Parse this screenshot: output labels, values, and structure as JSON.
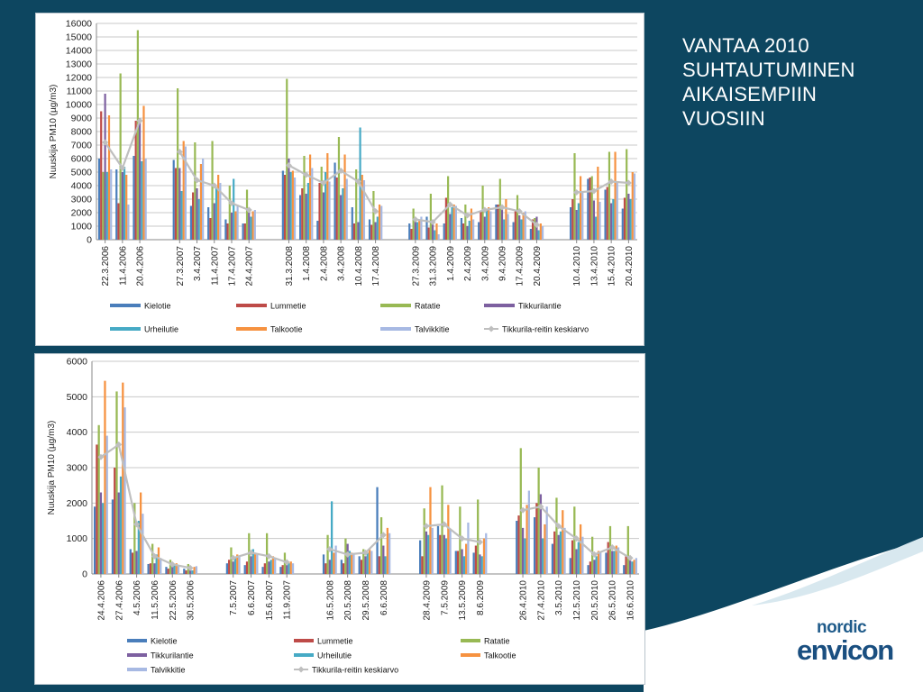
{
  "slide": {
    "title_lines": [
      "VANTAA 2010",
      "SUHTAUTUMINEN",
      "AIKAISEMPIIN",
      "VUOSIIN"
    ],
    "logo_top": "nordic",
    "logo_bottom": "envicon"
  },
  "colors": {
    "background": "#0d4660",
    "Kielotie": "#4a7ebb",
    "Lummetie": "#be4b48",
    "Ratatie": "#98b954",
    "Tikkurilantie": "#7d60a0",
    "Urheilutie": "#46aac5",
    "Talkootie": "#f69240",
    "Talvikkitie": "#a7b9e3",
    "Tikkurila-reitin keskiarvo": "#bfbfbf"
  },
  "chart_data": [
    {
      "type": "bar",
      "ylabel": "Nuuskija PM10 (µg/m3)",
      "ylim": [
        0,
        16000
      ],
      "yticks": [
        0,
        1000,
        2000,
        3000,
        4000,
        5000,
        6000,
        7000,
        8000,
        9000,
        10000,
        11000,
        12000,
        13000,
        14000,
        15000,
        16000
      ],
      "legend_position": "bottom",
      "series_names": [
        "Kielotie",
        "Lummetie",
        "Ratatie",
        "Tikkurilantie",
        "Urheilutie",
        "Talkootie",
        "Talvikkitie"
      ],
      "line_series_name": "Tikkurila-reitin  keskiarvo",
      "legend_order": [
        "Kielotie",
        "Lummetie",
        "Ratatie",
        "Tikkurilantie",
        "Urheilutie",
        "Talkootie",
        "Talvikkitie",
        "Tikkurila-reitin  keskiarvo"
      ],
      "groups": [
        {
          "categories": [
            {
              "date": "22.3.2006",
              "values": [
                6000,
                9500,
                5000,
                10800,
                5000,
                9200,
                5200
              ],
              "avg": 7200
            },
            {
              "date": "11.4.2006",
              "values": [
                5200,
                2700,
                12300,
                5000,
                5400,
                4800,
                2600
              ],
              "avg": 5300
            },
            {
              "date": "20.4.2006",
              "values": [
                6200,
                8800,
                15500,
                9000,
                5800,
                9900,
                6000
              ],
              "avg": 8800
            }
          ]
        },
        {
          "categories": [
            {
              "date": "27.3.2007",
              "values": [
                5900,
                5300,
                11200,
                5300,
                3600,
                7300,
                6900
              ],
              "avg": 6500
            },
            {
              "date": "3.4.2007",
              "values": [
                2500,
                3500,
                7200,
                3800,
                3000,
                5600,
                6000
              ],
              "avg": 4400
            },
            {
              "date": "11.4.2007",
              "values": [
                2400,
                1600,
                7300,
                2700,
                3900,
                4800,
                4200
              ],
              "avg": 4000
            },
            {
              "date": "17.4.2007",
              "values": [
                1500,
                1200,
                4000,
                2000,
                4500,
                2100,
                2500
              ],
              "avg": 2700
            },
            {
              "date": "24.4.2007",
              "values": [
                1200,
                1200,
                3700,
                2000,
                1700,
                2100,
                2200
              ],
              "avg": 2200
            }
          ]
        },
        {
          "categories": [
            {
              "date": "31.3.2008",
              "values": [
                5100,
                4800,
                11900,
                6000,
                5000,
                5100,
                4600
              ],
              "avg": 5500
            },
            {
              "date": "1.4.2008",
              "values": [
                3300,
                3800,
                6200,
                3400,
                4200,
                6300,
                5300
              ],
              "avg": 4800
            },
            {
              "date": "2.4.2008",
              "values": [
                1400,
                4200,
                5400,
                3500,
                5000,
                6400,
                4300
              ],
              "avg": 4200
            },
            {
              "date": "3.4.2008",
              "values": [
                5700,
                4600,
                7600,
                3300,
                3800,
                6300,
                4500
              ],
              "avg": 5100
            },
            {
              "date": "10.4.2008",
              "values": [
                2400,
                1200,
                5200,
                1300,
                8300,
                4800,
                4400
              ],
              "avg": 4300
            },
            {
              "date": "17.4.2008",
              "values": [
                1500,
                1100,
                3600,
                1300,
                1700,
                2600,
                2500
              ],
              "avg": 2100
            }
          ]
        },
        {
          "categories": [
            {
              "date": "27.3.2009",
              "values": [
                1200,
                800,
                2300,
                1400,
                1300,
                1500,
                1700
              ],
              "avg": 1500
            },
            {
              "date": "31.3.2009",
              "values": [
                1700,
                900,
                3400,
                1300,
                700,
                1200,
                400
              ],
              "avg": 1300
            },
            {
              "date": "1.4.2009",
              "values": [
                1200,
                3100,
                4700,
                1900,
                2400,
                2600,
                2500
              ],
              "avg": 2600
            },
            {
              "date": "2.4.2009",
              "values": [
                1600,
                1200,
                2600,
                1000,
                1400,
                2300,
                1500
              ],
              "avg": 1800
            },
            {
              "date": "3.4.2009",
              "values": [
                1300,
                2100,
                4000,
                1700,
                2200,
                2400,
                2100
              ],
              "avg": 2200
            },
            {
              "date": "9.4.2009",
              "values": [
                2600,
                2600,
                4500,
                2400,
                1500,
                3000,
                1900
              ],
              "avg": 2400
            },
            {
              "date": "17.4.2009",
              "values": [
                1300,
                2100,
                3300,
                1800,
                1500,
                2000,
                2100
              ],
              "avg": 2100
            },
            {
              "date": "20.4.2009",
              "values": [
                800,
                1500,
                1600,
                1700,
                700,
                1200,
                1000
              ],
              "avg": 1100
            }
          ]
        },
        {
          "categories": [
            {
              "date": "10.4.2010",
              "values": [
                2400,
                3000,
                6400,
                2200,
                2700,
                4700,
                3500
              ],
              "avg": 3500
            },
            {
              "date": "13.4.2010",
              "values": [
                4500,
                4600,
                4700,
                2900,
                1700,
                5400,
                2800
              ],
              "avg": 3600
            },
            {
              "date": "15.4.2010",
              "values": [
                3700,
                3900,
                6500,
                2700,
                3000,
                6500,
                4300
              ],
              "avg": 4300
            },
            {
              "date": "20.4.2010",
              "values": [
                2300,
                3100,
                6700,
                3400,
                3000,
                5000,
                4900
              ],
              "avg": 4200
            }
          ]
        }
      ]
    },
    {
      "type": "bar",
      "ylabel": "Nuuskija PM10 (µg/m3)",
      "ylim": [
        0,
        6000
      ],
      "yticks": [
        0,
        1000,
        2000,
        3000,
        4000,
        5000,
        6000
      ],
      "legend_position": "bottom",
      "series_names": [
        "Kielotie",
        "Lummetie",
        "Ratatie",
        "Tikkurilantie",
        "Urheilutie",
        "Talkootie",
        "Talvikkitie"
      ],
      "line_series_name": "Tikkurila-reitin keskiarvo",
      "legend_order": [
        "Kielotie",
        "Lummetie",
        "Ratatie",
        "Tikkurilantie",
        "Urheilutie",
        "Talkootie",
        "Talvikkitie",
        "Tikkurila-reitin keskiarvo"
      ],
      "groups": [
        {
          "categories": [
            {
              "date": "24.4.2006",
              "values": [
                1900,
                3650,
                4200,
                2300,
                2000,
                5450,
                3900
              ],
              "avg": 3300
            },
            {
              "date": "27.4.2006",
              "values": [
                2100,
                3000,
                5150,
                2300,
                2750,
                5400,
                4700
              ],
              "avg": 3650
            },
            {
              "date": "4.5.2006",
              "values": [
                700,
                600,
                2000,
                650,
                1500,
                2300,
                1700
              ],
              "avg": 1400
            },
            {
              "date": "11.5.2006",
              "values": [
                280,
                300,
                850,
                300,
                550,
                750,
                450
              ],
              "avg": 500
            },
            {
              "date": "22.5.2006",
              "values": [
                200,
                150,
                400,
                200,
                250,
                300,
                250
              ],
              "avg": 270
            },
            {
              "date": "30.5.2006",
              "values": [
                150,
                100,
                280,
                150,
                100,
                200,
                220
              ],
              "avg": 170
            }
          ]
        },
        {
          "categories": [
            {
              "date": "7.5.2007",
              "values": [
                300,
                400,
                750,
                350,
                450,
                550,
                500
              ],
              "avg": 450
            },
            {
              "date": "6.6.2007",
              "values": [
                250,
                350,
                1150,
                500,
                700,
                600,
                550
              ],
              "avg": 600
            },
            {
              "date": "15.6.2007",
              "values": [
                200,
                300,
                1150,
                350,
                400,
                500,
                450
              ],
              "avg": 500
            },
            {
              "date": "11.9.2007",
              "values": [
                200,
                250,
                600,
                250,
                300,
                350,
                300
              ],
              "avg": 330
            }
          ]
        },
        {
          "categories": [
            {
              "date": "16.5.2008",
              "values": [
                550,
                300,
                1100,
                400,
                2050,
                600,
                800
              ],
              "avg": 700
            },
            {
              "date": "20.5.2008",
              "values": [
                400,
                300,
                1000,
                850,
                650,
                600,
                550
              ],
              "avg": 550
            },
            {
              "date": "29.5.2008",
              "values": [
                500,
                400,
                700,
                500,
                600,
                700,
                650
              ],
              "avg": 600
            },
            {
              "date": "6.6.2008",
              "values": [
                2450,
                500,
                1600,
                800,
                500,
                1300,
                1150
              ],
              "avg": 1100
            }
          ]
        },
        {
          "categories": [
            {
              "date": "28.4.2009",
              "values": [
                950,
                500,
                1850,
                1200,
                1100,
                2450,
                1300
              ],
              "avg": 1350
            },
            {
              "date": "7.5.2009",
              "values": [
                1350,
                1100,
                2500,
                1100,
                1000,
                1950,
                1250
              ],
              "avg": 1400
            },
            {
              "date": "13.5.2009",
              "values": [
                650,
                650,
                1900,
                700,
                500,
                850,
                1450
              ],
              "avg": 1000
            },
            {
              "date": "8.6.2009",
              "values": [
                600,
                800,
                2100,
                550,
                500,
                1000,
                1150
              ],
              "avg": 900
            }
          ]
        },
        {
          "categories": [
            {
              "date": "26.4.2010",
              "values": [
                1500,
                1650,
                3550,
                1300,
                1000,
                1950,
                2350
              ],
              "avg": 1800
            },
            {
              "date": "27.4.2010",
              "values": [
                1600,
                2000,
                3000,
                2250,
                1000,
                1400,
                1900
              ],
              "avg": 1900
            },
            {
              "date": "3.5.2010",
              "values": [
                850,
                1200,
                2150,
                1100,
                1200,
                1800,
                1300
              ],
              "avg": 1350
            },
            {
              "date": "12.5.2010",
              "values": [
                450,
                950,
                1900,
                700,
                900,
                1400,
                1050
              ],
              "avg": 1000
            },
            {
              "date": "20.5.2010",
              "values": [
                250,
                350,
                1050,
                400,
                500,
                650,
                600
              ],
              "avg": 550
            },
            {
              "date": "26.5.2010",
              "values": [
                600,
                900,
                1350,
                650,
                650,
                800,
                750
              ],
              "avg": 750
            },
            {
              "date": "16.6.2010",
              "values": [
                250,
                500,
                1350,
                400,
                350,
                400,
                450
              ],
              "avg": 450
            }
          ]
        }
      ]
    }
  ]
}
